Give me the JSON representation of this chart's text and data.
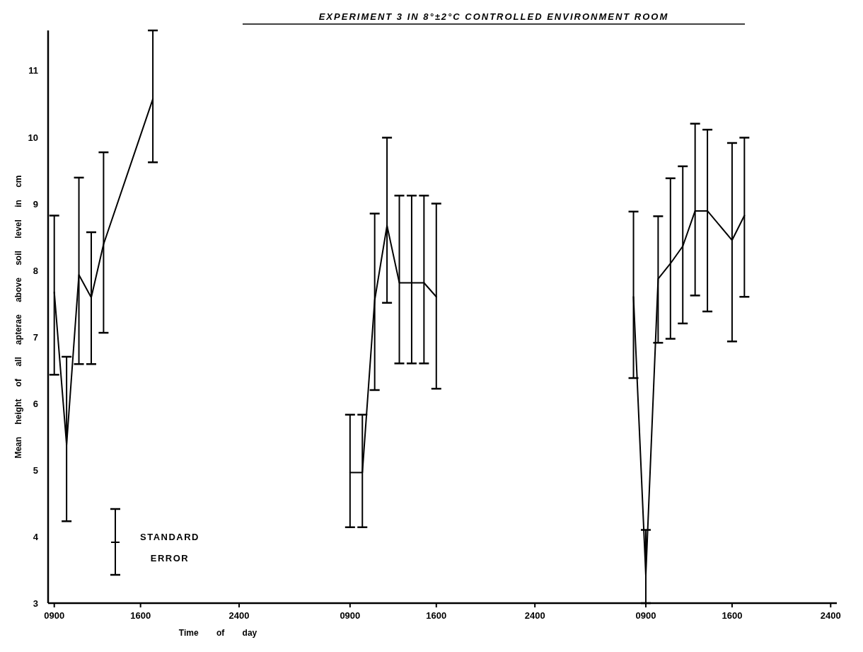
{
  "chart_data": {
    "type": "line",
    "title": "EXPERIMENT 3 IN 8°±2°C CONTROLLED ENVIRONMENT ROOM",
    "xlabel": "Time of day",
    "ylabel": "Mean height of all apterae above soil level in cm",
    "annotations": [
      "STANDARD ERROR"
    ],
    "categories": [
      "0900",
      null,
      null,
      null,
      null,
      null,
      null,
      "1600",
      null,
      null,
      null,
      null,
      null,
      null,
      null,
      "2400",
      null,
      null,
      null,
      null,
      null,
      null,
      null,
      null,
      "0900",
      null,
      null,
      null,
      null,
      null,
      null,
      "1600",
      null,
      null,
      null,
      null,
      null,
      null,
      null,
      "2400",
      null,
      null,
      null,
      null,
      null,
      null,
      null,
      null,
      "0900",
      null,
      null,
      null,
      null,
      null,
      null,
      "1600",
      null,
      null,
      null,
      null,
      null,
      null,
      null,
      "2400"
    ],
    "ylim": [
      3,
      11.6
    ],
    "yticks": [
      3,
      4,
      5,
      6,
      7,
      8,
      9,
      10,
      11
    ],
    "line_style": "solid",
    "series": [
      {
        "color": "#000000",
        "values": [
          7.67,
          5.38,
          7.93,
          7.59,
          8.39,
          null,
          null,
          null,
          10.57,
          null,
          null,
          null,
          null,
          null,
          null,
          null,
          null,
          null,
          null,
          null,
          null,
          null,
          null,
          null,
          null,
          null,
          null,
          null,
          null,
          null,
          null,
          null,
          null,
          null,
          null,
          null,
          null,
          null,
          null,
          null,
          null,
          null,
          null,
          null,
          null,
          null,
          null,
          null,
          null,
          null,
          null,
          null,
          null,
          null,
          null,
          null,
          null,
          null,
          null,
          null,
          null,
          null,
          null,
          null
        ],
        "errors": [
          [
            6.43,
            8.82
          ],
          [
            4.23,
            6.7
          ],
          [
            6.59,
            9.39
          ],
          [
            6.59,
            8.57
          ],
          [
            7.06,
            9.77
          ],
          null,
          null,
          null,
          [
            9.62,
            11.6
          ],
          null,
          null,
          null,
          null,
          null,
          null,
          null,
          null,
          null,
          null,
          null,
          null,
          null,
          null,
          null,
          null,
          null,
          null,
          null,
          null,
          null,
          null,
          null,
          null,
          null,
          null,
          null,
          null,
          null,
          null,
          null,
          null,
          null,
          null,
          null,
          null,
          null,
          null,
          null,
          null,
          null,
          null,
          null,
          null,
          null,
          null,
          null,
          null,
          null,
          null,
          null,
          null,
          null,
          null,
          null
        ]
      },
      {
        "color": "#000000",
        "values": [
          null,
          null,
          null,
          null,
          null,
          null,
          null,
          null,
          null,
          null,
          null,
          null,
          null,
          null,
          null,
          null,
          null,
          null,
          null,
          null,
          null,
          null,
          null,
          null,
          4.96,
          4.96,
          7.55,
          8.67,
          7.81,
          7.81,
          7.81,
          7.6,
          null,
          null,
          null,
          null,
          null,
          null,
          null,
          null,
          null,
          null,
          null,
          null,
          null,
          null,
          null,
          null,
          null,
          null,
          null,
          null,
          null,
          null,
          null,
          null,
          null,
          null,
          null,
          null,
          null,
          null,
          null,
          null
        ],
        "errors": [
          null,
          null,
          null,
          null,
          null,
          null,
          null,
          null,
          null,
          null,
          null,
          null,
          null,
          null,
          null,
          null,
          null,
          null,
          null,
          null,
          null,
          null,
          null,
          null,
          [
            4.14,
            5.83
          ],
          [
            4.14,
            5.83
          ],
          [
            6.2,
            8.85
          ],
          [
            7.51,
            9.99
          ],
          [
            6.6,
            9.12
          ],
          [
            6.6,
            9.12
          ],
          [
            6.6,
            9.12
          ],
          [
            6.22,
            9.0
          ],
          null,
          null,
          null,
          null,
          null,
          null,
          null,
          null,
          null,
          null,
          null,
          null,
          null,
          null,
          null,
          null,
          null,
          null,
          null,
          null,
          null,
          null,
          null,
          null,
          null,
          null,
          null,
          null,
          null,
          null,
          null,
          null
        ]
      },
      {
        "color": "#000000",
        "values": [
          null,
          null,
          null,
          null,
          null,
          null,
          null,
          null,
          null,
          null,
          null,
          null,
          null,
          null,
          null,
          null,
          null,
          null,
          null,
          null,
          null,
          null,
          null,
          null,
          null,
          null,
          null,
          null,
          null,
          null,
          null,
          null,
          null,
          null,
          null,
          null,
          null,
          null,
          null,
          null,
          null,
          null,
          null,
          null,
          null,
          null,
          null,
          7.6,
          3.42,
          7.87,
          8.1,
          8.36,
          8.89,
          8.89,
          null,
          8.45,
          8.82,
          null,
          null,
          null,
          null,
          null,
          null,
          null
        ],
        "errors": [
          null,
          null,
          null,
          null,
          null,
          null,
          null,
          null,
          null,
          null,
          null,
          null,
          null,
          null,
          null,
          null,
          null,
          null,
          null,
          null,
          null,
          null,
          null,
          null,
          null,
          null,
          null,
          null,
          null,
          null,
          null,
          null,
          null,
          null,
          null,
          null,
          null,
          null,
          null,
          null,
          null,
          null,
          null,
          null,
          null,
          null,
          null,
          [
            6.38,
            8.88
          ],
          [
            3.0,
            4.1
          ],
          [
            6.91,
            8.81
          ],
          [
            6.97,
            9.38
          ],
          [
            7.2,
            9.56
          ],
          [
            7.62,
            10.2
          ],
          [
            7.38,
            10.11
          ],
          null,
          [
            6.93,
            9.91
          ],
          [
            7.6,
            9.99
          ],
          null,
          null,
          null,
          null,
          null,
          null,
          null
        ]
      }
    ]
  }
}
